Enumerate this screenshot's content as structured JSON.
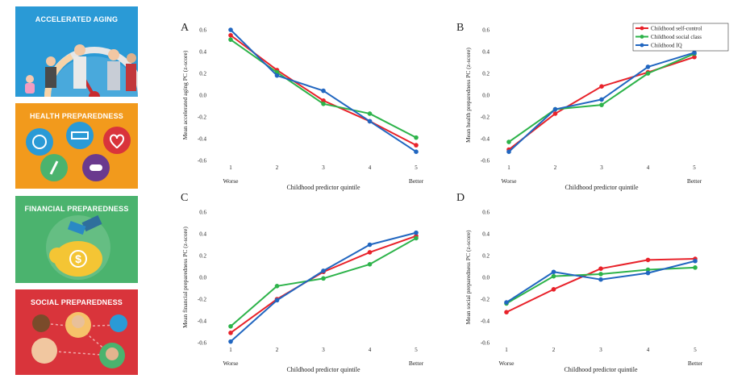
{
  "panels_left": [
    {
      "title": "ACCELERATED AGING",
      "color": "#2a9ad6"
    },
    {
      "title": "HEALTH PREPAREDNESS",
      "color": "#f29a1c"
    },
    {
      "title": "FINANCIAL PREPAREDNESS",
      "color": "#4bb36e"
    },
    {
      "title": "SOCIAL PREPAREDNESS",
      "color": "#d9343b"
    }
  ],
  "colors": {
    "self_control": "#e8222a",
    "social_class": "#2db34a",
    "iq": "#2166c0"
  },
  "chart_data": [
    {
      "type": "line",
      "panel_label": "A",
      "ylabel": "Mean accelerated aging PC (z-score)",
      "xlabel": "Childhood predictor quintile",
      "x": [
        "1",
        "2",
        "3",
        "4",
        "5"
      ],
      "x_sublabels": {
        "1": "Worse",
        "5": "Better"
      },
      "ylim": [
        -0.6,
        0.6
      ],
      "yticks": [
        "0.6",
        "0.4",
        "0.2",
        "0.0",
        "-0.2",
        "-0.4",
        "-0.6"
      ],
      "legend": true,
      "series": [
        {
          "name": "Childhood self-control",
          "values": [
            0.55,
            0.23,
            -0.05,
            -0.24,
            -0.46
          ]
        },
        {
          "name": "Childhood social class",
          "values": [
            0.51,
            0.21,
            -0.08,
            -0.17,
            -0.39
          ]
        },
        {
          "name": "Childhood IQ",
          "values": [
            0.6,
            0.18,
            0.04,
            -0.24,
            -0.52
          ]
        }
      ]
    },
    {
      "type": "line",
      "panel_label": "B",
      "ylabel": "Mean health preparedness PC (z-score)",
      "xlabel": "Childhood predictor quintile",
      "x": [
        "1",
        "2",
        "3",
        "4",
        "5"
      ],
      "x_sublabels": {
        "1": "Worse",
        "5": "Better"
      },
      "ylim": [
        -0.6,
        0.6
      ],
      "yticks": [
        "0.6",
        "0.4",
        "0.2",
        "0.0",
        "-0.2",
        "-0.4",
        "-0.6"
      ],
      "legend": true,
      "legend_position": "top-right",
      "series": [
        {
          "name": "Childhood self-control",
          "values": [
            -0.5,
            -0.17,
            0.08,
            0.21,
            0.35
          ]
        },
        {
          "name": "Childhood social class",
          "values": [
            -0.43,
            -0.13,
            -0.09,
            0.2,
            0.38
          ]
        },
        {
          "name": "Childhood IQ",
          "values": [
            -0.52,
            -0.13,
            -0.04,
            0.26,
            0.39
          ]
        }
      ]
    },
    {
      "type": "line",
      "panel_label": "C",
      "ylabel": "Mean financial preparedness PC (z-score)",
      "xlabel": "Childhood predictor quintile",
      "x": [
        "1",
        "2",
        "3",
        "4",
        "5"
      ],
      "x_sublabels": {
        "1": "Worse",
        "5": "Better"
      },
      "ylim": [
        -0.6,
        0.6
      ],
      "yticks": [
        "0.6",
        "0.4",
        "0.2",
        "0.0",
        "-0.2",
        "-0.4",
        "-0.6"
      ],
      "legend": false,
      "series": [
        {
          "name": "Childhood self-control",
          "values": [
            -0.51,
            -0.2,
            0.05,
            0.23,
            0.38
          ]
        },
        {
          "name": "Childhood social class",
          "values": [
            -0.45,
            -0.08,
            -0.01,
            0.12,
            0.36
          ]
        },
        {
          "name": "Childhood IQ",
          "values": [
            -0.59,
            -0.21,
            0.06,
            0.3,
            0.41
          ]
        }
      ]
    },
    {
      "type": "line",
      "panel_label": "D",
      "ylabel": "Mean social preparedness PC (z-score)",
      "xlabel": "Childhood predictor quintile",
      "x": [
        "1",
        "2",
        "3",
        "4",
        "5"
      ],
      "x_sublabels": {
        "1": "Worse",
        "5": "Better"
      },
      "ylim": [
        -0.6,
        0.6
      ],
      "yticks": [
        "0.6",
        "0.4",
        "0.2",
        "0.0",
        "-0.2",
        "-0.4",
        "-0.6"
      ],
      "legend": false,
      "series": [
        {
          "name": "Childhood self-control",
          "values": [
            -0.32,
            -0.11,
            0.08,
            0.16,
            0.17
          ]
        },
        {
          "name": "Childhood social class",
          "values": [
            -0.24,
            0.01,
            0.03,
            0.07,
            0.09
          ]
        },
        {
          "name": "Childhood IQ",
          "values": [
            -0.23,
            0.05,
            -0.02,
            0.04,
            0.15
          ]
        }
      ]
    }
  ]
}
